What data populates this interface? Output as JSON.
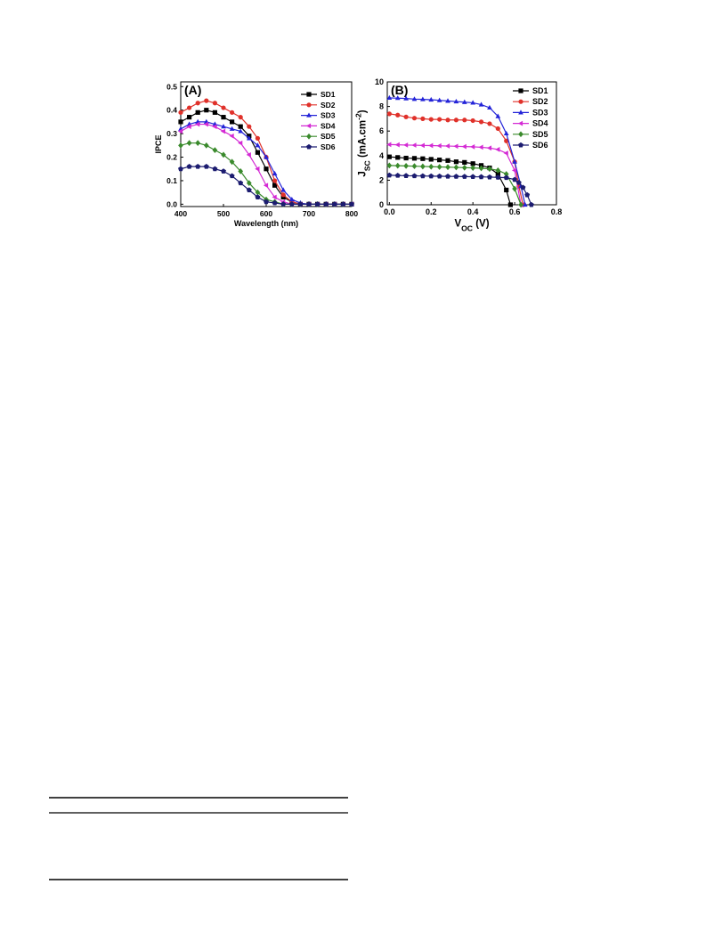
{
  "chart_data": [
    {
      "type": "line",
      "annotation": "(A)",
      "x_label": [
        {
          "text": "Wavelength (nm)"
        }
      ],
      "y_label": [
        {
          "text": "IPCE"
        }
      ],
      "xlim": [
        400,
        800
      ],
      "xticks": [
        400,
        500,
        600,
        700,
        800
      ],
      "ylim": [
        -0.01,
        0.52
      ],
      "yticks": [
        {
          "value": 0,
          "label": "0.0"
        },
        0.1,
        0.2,
        0.3,
        0.4,
        0.5
      ],
      "legend": "upper right",
      "series": [
        {
          "name": "SD1",
          "color": "#000000",
          "marker": "square",
          "x": [
            400,
            420,
            440,
            460,
            480,
            500,
            520,
            540,
            560,
            580,
            600,
            620,
            640,
            660,
            680,
            700,
            720,
            740,
            760,
            780,
            800
          ],
          "values": [
            0.35,
            0.37,
            0.39,
            0.4,
            0.39,
            0.37,
            0.35,
            0.33,
            0.29,
            0.22,
            0.15,
            0.08,
            0.03,
            0.01,
            0,
            0,
            0,
            0,
            0,
            0,
            0
          ]
        },
        {
          "name": "SD2",
          "color": "#e0312a",
          "marker": "circle",
          "x": [
            400,
            420,
            440,
            460,
            480,
            500,
            520,
            540,
            560,
            580,
            600,
            620,
            640,
            660,
            680,
            700,
            720,
            740,
            760,
            780,
            800
          ],
          "values": [
            0.39,
            0.41,
            0.43,
            0.44,
            0.43,
            0.41,
            0.39,
            0.37,
            0.33,
            0.28,
            0.2,
            0.1,
            0.04,
            0.01,
            0,
            0,
            0,
            0,
            0,
            0,
            0
          ]
        },
        {
          "name": "SD3",
          "color": "#2424d8",
          "marker": "triangle",
          "x": [
            400,
            420,
            440,
            460,
            480,
            500,
            520,
            540,
            560,
            580,
            600,
            620,
            640,
            660,
            680,
            700,
            720,
            740,
            760,
            780,
            800
          ],
          "values": [
            0.32,
            0.34,
            0.35,
            0.35,
            0.34,
            0.33,
            0.32,
            0.31,
            0.28,
            0.25,
            0.2,
            0.13,
            0.06,
            0.02,
            0.005,
            0,
            0,
            0,
            0,
            0,
            0
          ]
        },
        {
          "name": "SD4",
          "color": "#d42ad4",
          "marker": "triangle-left",
          "x": [
            400,
            420,
            440,
            460,
            480,
            500,
            520,
            540,
            560,
            580,
            600,
            620,
            640,
            660,
            680,
            700,
            720,
            740,
            760,
            780,
            800
          ],
          "values": [
            0.31,
            0.33,
            0.34,
            0.34,
            0.33,
            0.31,
            0.29,
            0.26,
            0.21,
            0.15,
            0.08,
            0.03,
            0.01,
            0,
            0,
            0,
            0,
            0,
            0,
            0,
            0
          ]
        },
        {
          "name": "SD5",
          "color": "#3a8a2c",
          "marker": "diamond",
          "x": [
            400,
            420,
            440,
            460,
            480,
            500,
            520,
            540,
            560,
            580,
            600,
            620,
            640,
            660,
            680,
            700,
            720,
            740,
            760,
            780,
            800
          ],
          "values": [
            0.25,
            0.26,
            0.26,
            0.25,
            0.23,
            0.21,
            0.18,
            0.14,
            0.09,
            0.05,
            0.02,
            0.01,
            0,
            0,
            0,
            0,
            0,
            0,
            0,
            0,
            0
          ]
        },
        {
          "name": "SD6",
          "color": "#1c1c70",
          "marker": "pentagon",
          "x": [
            400,
            420,
            440,
            460,
            480,
            500,
            520,
            540,
            560,
            580,
            600,
            620,
            640,
            660,
            680,
            700,
            720,
            740,
            760,
            780,
            800
          ],
          "values": [
            0.15,
            0.16,
            0.16,
            0.16,
            0.15,
            0.14,
            0.12,
            0.09,
            0.06,
            0.03,
            0.01,
            0.005,
            0,
            0,
            0,
            0,
            0,
            0,
            0,
            0,
            0
          ]
        }
      ]
    },
    {
      "type": "line",
      "annotation": "(B)",
      "x_label": [
        {
          "text": "V"
        },
        {
          "text": "OC",
          "shift": "sub"
        },
        {
          "text": " (V)"
        }
      ],
      "y_label": [
        {
          "text": "J"
        },
        {
          "text": "SC",
          "shift": "sub"
        },
        {
          "text": " (mA.cm"
        },
        {
          "text": "-2",
          "shift": "super"
        },
        {
          "text": ")"
        }
      ],
      "xlim": [
        -0.01,
        0.8
      ],
      "xticks": [
        {
          "value": 0,
          "label": "0.0"
        },
        0.2,
        0.4,
        0.6,
        0.8
      ],
      "ylim": [
        0,
        10
      ],
      "yticks": [
        0,
        2,
        4,
        6,
        8,
        10
      ],
      "legend": "upper right",
      "series": [
        {
          "name": "SD1",
          "color": "#000000",
          "marker": "square",
          "x": [
            0,
            0.04,
            0.08,
            0.12,
            0.16,
            0.2,
            0.24,
            0.28,
            0.32,
            0.36,
            0.4,
            0.44,
            0.48,
            0.52,
            0.56,
            0.58
          ],
          "values": [
            3.9,
            3.85,
            3.8,
            3.78,
            3.75,
            3.7,
            3.65,
            3.6,
            3.5,
            3.45,
            3.35,
            3.2,
            3.0,
            2.5,
            1.2,
            0
          ]
        },
        {
          "name": "SD2",
          "color": "#e0312a",
          "marker": "circle",
          "x": [
            0,
            0.04,
            0.08,
            0.12,
            0.16,
            0.2,
            0.24,
            0.28,
            0.32,
            0.36,
            0.4,
            0.44,
            0.48,
            0.52,
            0.56,
            0.6,
            0.62,
            0.64
          ],
          "values": [
            7.4,
            7.3,
            7.15,
            7.05,
            7.0,
            6.95,
            6.95,
            6.9,
            6.9,
            6.9,
            6.85,
            6.75,
            6.6,
            6.2,
            5.2,
            3.5,
            1.5,
            0
          ]
        },
        {
          "name": "SD3",
          "color": "#2424d8",
          "marker": "triangle",
          "x": [
            0,
            0.04,
            0.08,
            0.12,
            0.16,
            0.2,
            0.24,
            0.28,
            0.32,
            0.36,
            0.4,
            0.44,
            0.48,
            0.52,
            0.56,
            0.6,
            0.63,
            0.65
          ],
          "values": [
            8.7,
            8.68,
            8.65,
            8.6,
            8.58,
            8.55,
            8.5,
            8.45,
            8.4,
            8.35,
            8.3,
            8.15,
            7.9,
            7.2,
            5.8,
            3.5,
            1.5,
            0
          ]
        },
        {
          "name": "SD4",
          "color": "#d42ad4",
          "marker": "triangle-left",
          "x": [
            0,
            0.04,
            0.08,
            0.12,
            0.16,
            0.2,
            0.24,
            0.28,
            0.32,
            0.36,
            0.4,
            0.44,
            0.48,
            0.52,
            0.56,
            0.6,
            0.63
          ],
          "values": [
            4.9,
            4.88,
            4.86,
            4.85,
            4.83,
            4.82,
            4.8,
            4.78,
            4.76,
            4.74,
            4.72,
            4.68,
            4.62,
            4.5,
            4.2,
            2.8,
            0
          ]
        },
        {
          "name": "SD5",
          "color": "#3a8a2c",
          "marker": "diamond",
          "x": [
            0,
            0.04,
            0.08,
            0.12,
            0.16,
            0.2,
            0.24,
            0.28,
            0.32,
            0.36,
            0.4,
            0.44,
            0.48,
            0.52,
            0.56,
            0.6,
            0.63
          ],
          "values": [
            3.2,
            3.18,
            3.16,
            3.14,
            3.12,
            3.1,
            3.08,
            3.06,
            3.04,
            3.02,
            3.0,
            2.97,
            2.92,
            2.8,
            2.5,
            1.3,
            0
          ]
        },
        {
          "name": "SD6",
          "color": "#1c1c70",
          "marker": "pentagon",
          "x": [
            0,
            0.04,
            0.08,
            0.12,
            0.16,
            0.2,
            0.24,
            0.28,
            0.32,
            0.36,
            0.4,
            0.44,
            0.48,
            0.52,
            0.56,
            0.6,
            0.62,
            0.64,
            0.66,
            0.68
          ],
          "values": [
            2.4,
            2.38,
            2.36,
            2.35,
            2.34,
            2.33,
            2.32,
            2.31,
            2.3,
            2.29,
            2.28,
            2.27,
            2.25,
            2.23,
            2.2,
            2.05,
            1.8,
            1.4,
            0.8,
            0
          ]
        }
      ]
    }
  ]
}
